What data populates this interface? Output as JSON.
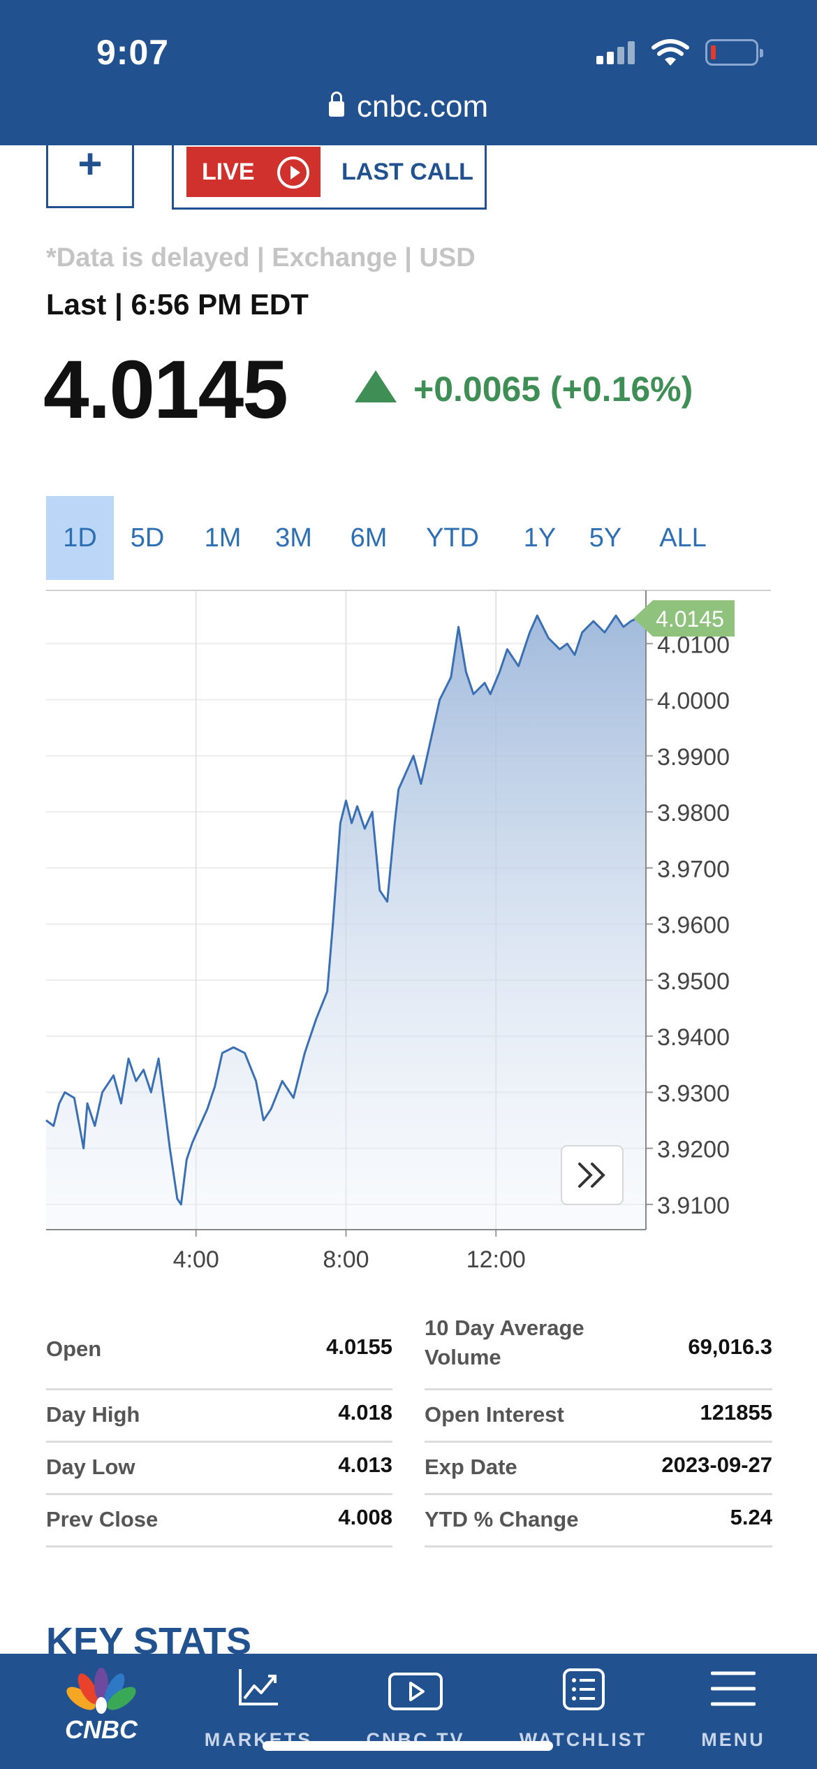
{
  "status_bar": {
    "time": "9:07",
    "url": "cnbc.com"
  },
  "top_actions": {
    "plus_label": "+",
    "live_label": "LIVE",
    "last_call_label": "LAST CALL"
  },
  "quote": {
    "delay_note": "*Data is delayed | Exchange | USD",
    "last_time": "Last | 6:56 PM EDT",
    "price": "4.0145",
    "change": "+0.0065 (+0.16%)",
    "change_color": "#3e8e56"
  },
  "tabs": [
    "1D",
    "5D",
    "1M",
    "3M",
    "6M",
    "YTD",
    "1Y",
    "5Y",
    "ALL"
  ],
  "active_tab": "1D",
  "chart_data": {
    "type": "area",
    "x_tick_labels": [
      "4:00",
      "8:00",
      "12:00"
    ],
    "y_tick_labels": [
      "4.0100",
      "4.0000",
      "3.9900",
      "3.9800",
      "3.9700",
      "3.9600",
      "3.9500",
      "3.9400",
      "3.9300",
      "3.9200",
      "3.9100"
    ],
    "ylim": [
      3.9055,
      4.0195
    ],
    "xlim": [
      0,
      16
    ],
    "grid": true,
    "last_value_label": "4.0145",
    "x": [
      0.0,
      0.2,
      0.35,
      0.5,
      0.75,
      1.0,
      1.1,
      1.3,
      1.5,
      1.8,
      2.0,
      2.2,
      2.4,
      2.6,
      2.8,
      3.0,
      3.3,
      3.5,
      3.6,
      3.75,
      3.9,
      4.1,
      4.3,
      4.5,
      4.7,
      5.0,
      5.3,
      5.6,
      5.8,
      6.0,
      6.3,
      6.6,
      6.9,
      7.2,
      7.5,
      7.65,
      7.85,
      8.0,
      8.15,
      8.3,
      8.5,
      8.7,
      8.9,
      9.1,
      9.3,
      9.4,
      9.6,
      9.8,
      10.0,
      10.2,
      10.5,
      10.8,
      11.0,
      11.2,
      11.4,
      11.7,
      11.85,
      12.1,
      12.3,
      12.6,
      12.9,
      13.1,
      13.4,
      13.7,
      13.9,
      14.1,
      14.3,
      14.6,
      14.9,
      15.2,
      15.4,
      15.6,
      15.75,
      16.0
    ],
    "values": [
      3.925,
      3.924,
      3.928,
      3.93,
      3.929,
      3.92,
      3.928,
      3.924,
      3.93,
      3.933,
      3.928,
      3.936,
      3.932,
      3.934,
      3.93,
      3.936,
      3.92,
      3.911,
      3.91,
      3.918,
      3.921,
      3.924,
      3.927,
      3.931,
      3.937,
      3.938,
      3.937,
      3.932,
      3.925,
      3.927,
      3.932,
      3.929,
      3.937,
      3.943,
      3.948,
      3.96,
      3.978,
      3.982,
      3.978,
      3.981,
      3.977,
      3.98,
      3.966,
      3.964,
      3.978,
      3.984,
      3.987,
      3.99,
      3.985,
      3.991,
      4.0,
      4.004,
      4.013,
      4.005,
      4.001,
      4.003,
      4.001,
      4.005,
      4.009,
      4.006,
      4.012,
      4.015,
      4.011,
      4.009,
      4.01,
      4.008,
      4.012,
      4.014,
      4.012,
      4.015,
      4.013,
      4.014,
      4.0145,
      4.0145
    ]
  },
  "stats": {
    "left": [
      {
        "label": "Open",
        "value": "4.0155"
      },
      {
        "label": "Day High",
        "value": "4.018"
      },
      {
        "label": "Day Low",
        "value": "4.013"
      },
      {
        "label": "Prev Close",
        "value": "4.008"
      }
    ],
    "right": [
      {
        "label": "10 Day Average Volume",
        "value": "69,016.3"
      },
      {
        "label": "Open Interest",
        "value": "121855"
      },
      {
        "label": "Exp Date",
        "value": "2023-09-27"
      },
      {
        "label": "YTD % Change",
        "value": "5.24"
      }
    ]
  },
  "section_heading": "KEY STATS",
  "nav": {
    "logo_text": "CNBC",
    "items": [
      {
        "label": "MARKETS",
        "icon": "chart-line-icon"
      },
      {
        "label": "CNBC TV",
        "icon": "play-icon"
      },
      {
        "label": "WATCHLIST",
        "icon": "list-icon"
      },
      {
        "label": "MENU",
        "icon": "hamburger-icon"
      }
    ]
  },
  "colors": {
    "brand_blue": "#21528f",
    "live_red": "#d0312d",
    "tab_active_bg": "#bcd6f7",
    "line_blue": "#3a6fb3",
    "badge_green": "#8fc27c"
  }
}
